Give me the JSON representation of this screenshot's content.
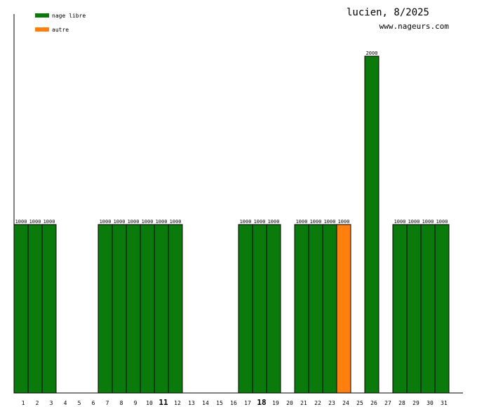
{
  "title": "lucien, 8/2025",
  "site": "www.nageurs.com",
  "legend": [
    {
      "label": "nage libre",
      "color": "#0a7a0a"
    },
    {
      "label": "autre",
      "color": "#ff7f0e"
    }
  ],
  "chart_data": {
    "type": "bar",
    "categories": [
      "1",
      "2",
      "3",
      "4",
      "5",
      "6",
      "7",
      "8",
      "9",
      "10",
      "11",
      "12",
      "13",
      "14",
      "15",
      "16",
      "17",
      "18",
      "19",
      "20",
      "21",
      "22",
      "23",
      "24",
      "25",
      "26",
      "27",
      "28",
      "29",
      "30",
      "31"
    ],
    "bold_categories": [
      "11",
      "18"
    ],
    "series": [
      {
        "name": "nage libre",
        "color": "#0a7a0a",
        "values": [
          1000,
          1000,
          1000,
          0,
          0,
          0,
          1000,
          1000,
          1000,
          1000,
          1000,
          1000,
          0,
          0,
          0,
          0,
          1000,
          1000,
          1000,
          0,
          1000,
          1000,
          1000,
          0,
          0,
          2000,
          0,
          1000,
          1000,
          1000,
          1000
        ]
      },
      {
        "name": "autre",
        "color": "#ff7f0e",
        "values": [
          0,
          0,
          0,
          0,
          0,
          0,
          0,
          0,
          0,
          0,
          0,
          0,
          0,
          0,
          0,
          0,
          0,
          0,
          0,
          0,
          0,
          0,
          0,
          1000,
          0,
          0,
          0,
          0,
          0,
          0,
          0
        ]
      }
    ],
    "ylim": [
      0,
      2250
    ]
  }
}
